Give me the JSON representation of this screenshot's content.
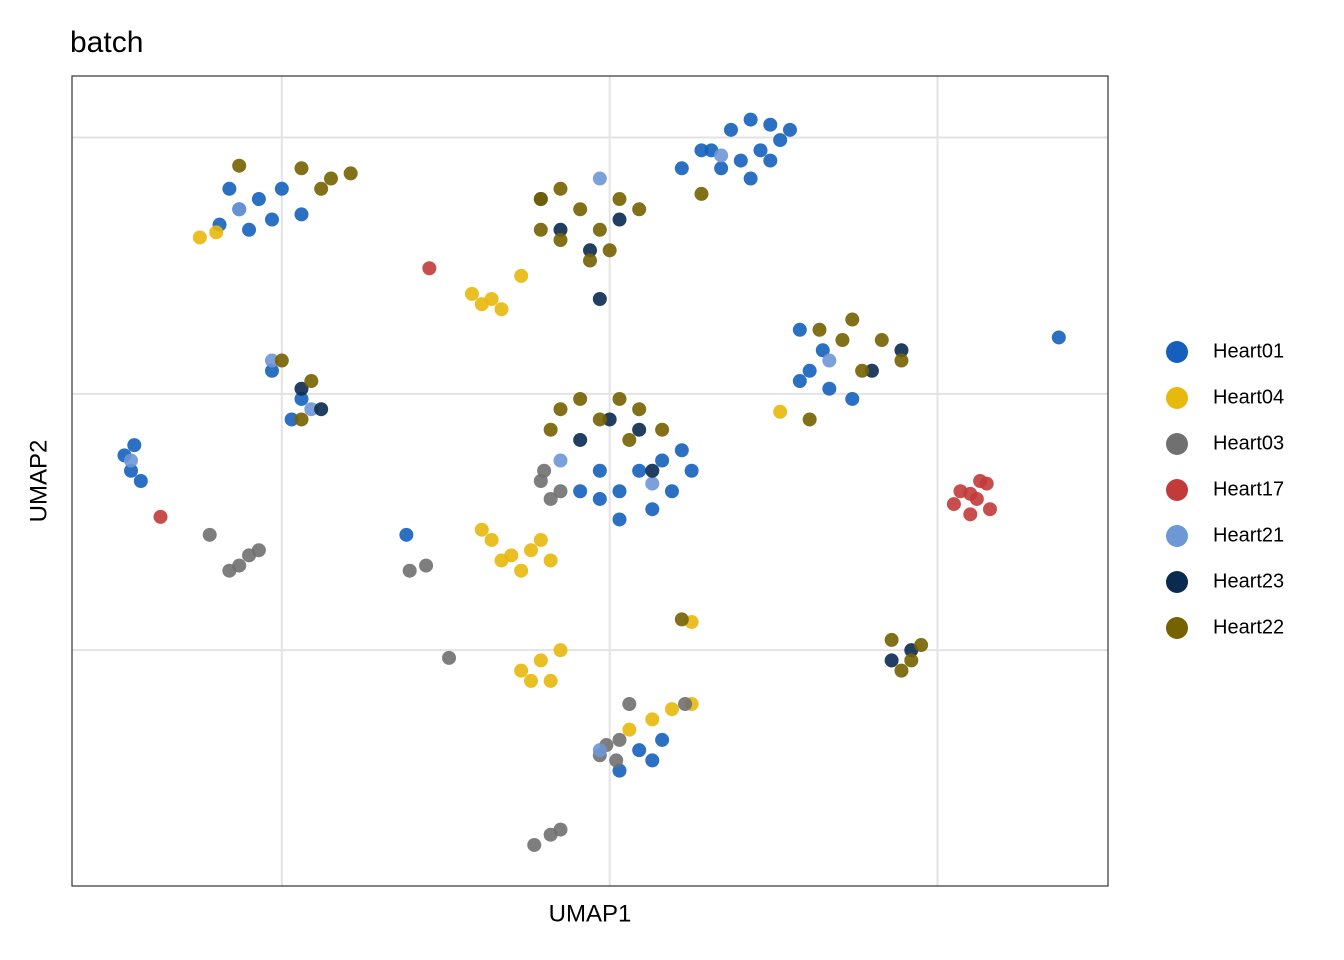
{
  "chart_data": {
    "type": "scatter",
    "title": "batch",
    "xlabel": "UMAP1",
    "ylabel": "UMAP2",
    "xlim": [
      -16.4,
      15.2
    ],
    "ylim": [
      -19.2,
      12.4
    ],
    "xticks": [
      -10,
      0,
      10
    ],
    "yticks": [
      -10,
      0,
      10
    ],
    "grid": true,
    "legend": "right",
    "series": [
      {
        "name": "Heart01",
        "color": "#1560bd",
        "x": [
          3.1,
          3.7,
          4.3,
          4.9,
          5.2,
          4.6,
          4.0,
          3.4,
          2.8,
          4.9,
          4.3,
          5.5,
          2.2,
          -11.9,
          -11.3,
          -10.7,
          -10.0,
          -9.4,
          -11.6,
          -11.0,
          -10.3,
          -0.3,
          0.3,
          0.9,
          1.6,
          2.2,
          1.3,
          0.3,
          -0.3,
          1.9,
          2.5,
          -0.9,
          5.8,
          6.5,
          6.1,
          6.7,
          5.8,
          7.4,
          -14.8,
          -14.6,
          -14.3,
          -14.5,
          0.9,
          1.6,
          0.3,
          1.3,
          -9.7,
          -9.4,
          -10.3,
          -6.2,
          13.7
        ],
        "y": [
          9.5,
          10.3,
          10.7,
          10.5,
          9.9,
          9.5,
          9.1,
          8.8,
          9.5,
          9.1,
          8.4,
          10.3,
          8.8,
          6.6,
          7.2,
          7.6,
          8.0,
          7.0,
          8.0,
          6.4,
          6.8,
          -3.0,
          -3.8,
          -3.0,
          -2.6,
          -2.2,
          -4.5,
          -4.9,
          -4.1,
          -3.8,
          -3.0,
          -3.8,
          2.5,
          1.7,
          0.9,
          0.2,
          0.5,
          -0.2,
          -2.4,
          -3.0,
          -3.4,
          -2.0,
          -13.9,
          -13.5,
          -14.7,
          -14.3,
          -1.0,
          -0.2,
          0.9,
          -5.5,
          2.2
        ]
      },
      {
        "name": "Heart04",
        "color": "#e8b80c",
        "x": [
          -4.2,
          -3.6,
          -3.3,
          -3.9,
          -2.7,
          -3.6,
          -3.0,
          -2.4,
          -3.3,
          -2.7,
          -2.1,
          -3.9,
          -1.8,
          -2.7,
          -2.1,
          -1.8,
          -1.5,
          -2.4,
          1.3,
          1.9,
          2.5,
          0.6,
          -12.5,
          -12.0,
          5.2,
          2.5
        ],
        "y": [
          3.9,
          3.7,
          3.3,
          3.5,
          4.6,
          -5.7,
          -6.3,
          -6.1,
          -6.5,
          -6.9,
          -5.7,
          -5.3,
          -6.5,
          -10.8,
          -10.4,
          -11.2,
          -10.0,
          -11.2,
          -12.7,
          -12.3,
          -12.1,
          -13.1,
          6.1,
          6.3,
          -0.7,
          -8.9
        ]
      },
      {
        "name": "Heart03",
        "color": "#707070",
        "x": [
          -2.1,
          -1.8,
          -1.5,
          -2.0,
          -11.6,
          -11.0,
          -10.7,
          -11.3,
          -12.2,
          -0.1,
          0.2,
          -0.3,
          0.3,
          -2.3,
          -1.8,
          -1.5,
          -6.1,
          -5.6,
          -4.9,
          0.6,
          2.3
        ],
        "y": [
          -3.4,
          -4.1,
          -3.8,
          -3.0,
          -6.9,
          -6.3,
          -6.1,
          -6.7,
          -5.5,
          -13.7,
          -14.3,
          -14.1,
          -13.5,
          -17.6,
          -17.2,
          -17.0,
          -6.9,
          -6.7,
          -10.3,
          -12.1,
          -12.1
        ]
      },
      {
        "name": "Heart17",
        "color": "#c23b3b",
        "x": [
          10.7,
          11.2,
          11.5,
          11.0,
          11.6,
          10.5,
          11.3,
          11.0,
          -13.7,
          -5.5
        ],
        "y": [
          -3.8,
          -4.1,
          -3.5,
          -4.7,
          -4.5,
          -4.3,
          -3.4,
          -3.9,
          -4.8,
          4.9
        ]
      },
      {
        "name": "Heart21",
        "color": "#6e97d6",
        "x": [
          3.4,
          -0.3,
          -1.5,
          6.7,
          -10.3,
          -9.1,
          -14.6,
          -0.3,
          -11.3,
          1.3
        ],
        "y": [
          9.3,
          8.4,
          -2.6,
          1.3,
          1.3,
          -0.6,
          -2.6,
          -13.9,
          7.2,
          -3.5
        ]
      },
      {
        "name": "Heart23",
        "color": "#0a2a50",
        "x": [
          -1.5,
          -0.6,
          0.3,
          -0.3,
          -0.9,
          0.0,
          0.9,
          8.0,
          8.9,
          -9.4,
          -8.8,
          8.6,
          9.2,
          -2.1,
          1.3
        ],
        "y": [
          6.4,
          5.6,
          6.8,
          3.7,
          -1.8,
          -1.0,
          -1.4,
          0.9,
          1.7,
          0.2,
          -0.6,
          -10.4,
          -10.0,
          7.6,
          -3.0
        ]
      },
      {
        "name": "Heart22",
        "color": "#756200",
        "x": [
          -2.1,
          -1.5,
          -0.9,
          -0.3,
          0.3,
          -1.5,
          -0.6,
          -2.1,
          0.0,
          0.9,
          -1.5,
          -0.9,
          -0.3,
          0.3,
          0.9,
          1.6,
          -1.8,
          0.6,
          6.4,
          7.4,
          8.3,
          8.9,
          7.7,
          7.1,
          6.1,
          8.6,
          9.2,
          8.9,
          9.5,
          -9.4,
          -8.5,
          -7.9,
          -11.3,
          -8.8,
          -10.0,
          -9.1,
          -9.4,
          2.8,
          2.2
        ],
        "y": [
          7.6,
          8.0,
          7.2,
          6.4,
          7.6,
          6.0,
          5.2,
          6.4,
          5.6,
          7.2,
          -0.6,
          -0.2,
          -1.0,
          -0.2,
          -0.6,
          -1.4,
          -1.4,
          -1.8,
          2.5,
          2.9,
          2.1,
          1.3,
          0.9,
          2.1,
          -1.0,
          -9.6,
          -10.4,
          -10.8,
          -9.8,
          8.8,
          8.4,
          8.6,
          8.9,
          8.0,
          1.3,
          0.5,
          -1.0,
          7.8,
          -8.8
        ]
      }
    ]
  }
}
